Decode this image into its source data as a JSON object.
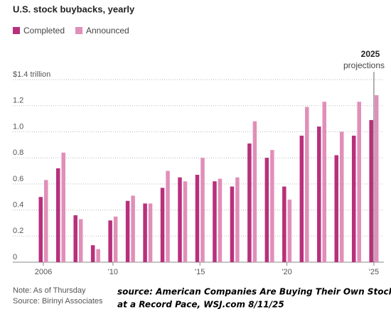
{
  "chart_data": {
    "type": "bar",
    "title": "U.S. stock buybacks, yearly",
    "categories": [
      "2006",
      null,
      null,
      null,
      "'10",
      null,
      null,
      null,
      null,
      "'15",
      null,
      null,
      null,
      null,
      "'20",
      null,
      null,
      null,
      null,
      "'25"
    ],
    "series": [
      {
        "name": "Completed",
        "color": "#b8307c",
        "values": [
          0.5,
          0.72,
          0.36,
          0.13,
          0.32,
          0.47,
          0.45,
          0.57,
          0.65,
          0.67,
          0.62,
          0.58,
          0.91,
          0.8,
          0.58,
          0.97,
          1.04,
          0.82,
          0.97,
          1.09
        ]
      },
      {
        "name": "Announced",
        "color": "#e08fb9",
        "values": [
          0.63,
          0.84,
          0.33,
          0.1,
          0.35,
          0.51,
          0.45,
          0.7,
          0.62,
          0.8,
          0.64,
          0.65,
          1.08,
          0.86,
          0.48,
          1.19,
          1.23,
          1.0,
          1.23,
          1.28
        ]
      }
    ],
    "ylim": [
      0,
      1.4
    ],
    "yticks": [
      0,
      0.2,
      0.4,
      0.6,
      {
        "value": 0.8,
        "label": "0.8"
      },
      {
        "value": 1,
        "label": "1.0"
      },
      1.2,
      {
        "value": 1.4,
        "label": "$1.4 trillion"
      }
    ],
    "grid": true,
    "annotation": {
      "year": "2025",
      "text": "projections"
    },
    "notes": [
      "Note: As of Thursday",
      "Source: Birinyi Associates"
    ],
    "source": [
      "source: American Companies Are Buying Their Own Stocks",
      "at a Record Pace, WSJ.com 8/11/25"
    ]
  }
}
